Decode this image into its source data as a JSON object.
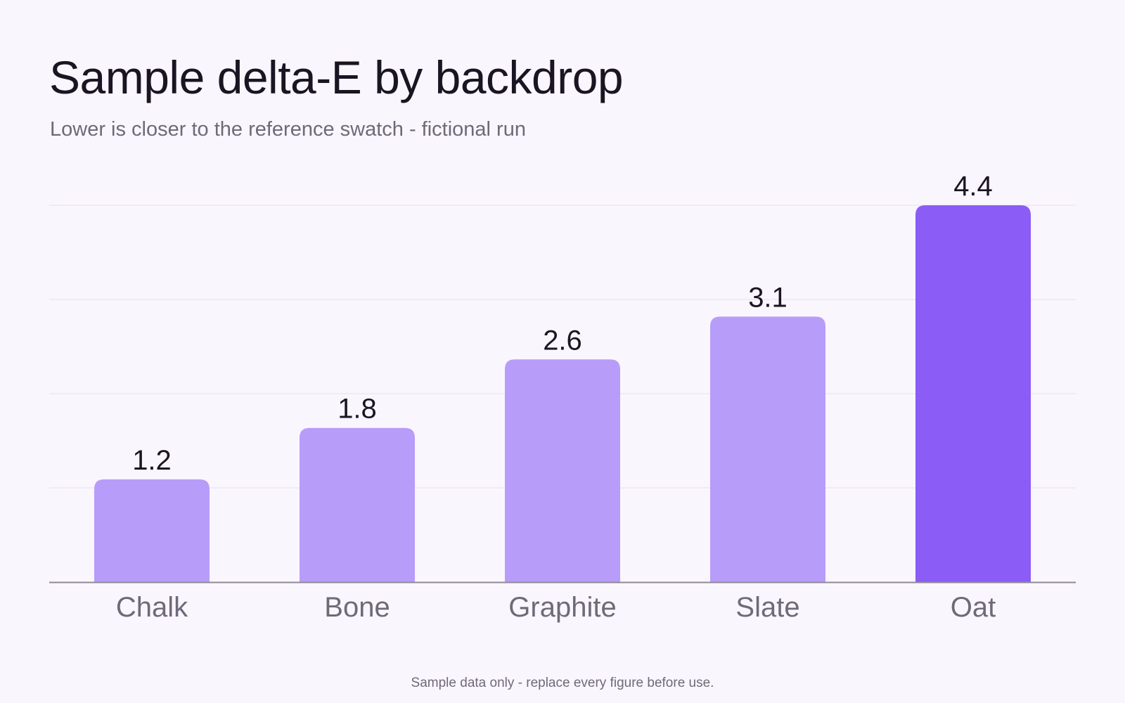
{
  "chart_data": {
    "type": "bar",
    "title": "Sample delta-E by backdrop",
    "subtitle": "Lower is closer to the reference swatch - fictional run",
    "categories": [
      "Chalk",
      "Bone",
      "Graphite",
      "Slate",
      "Oat"
    ],
    "values": [
      1.2,
      1.8,
      2.6,
      3.1,
      4.4
    ],
    "value_labels": [
      "1.2",
      "1.8",
      "2.6",
      "3.1",
      "4.4"
    ],
    "ylim": [
      0,
      4.4
    ],
    "xlabel": "",
    "ylabel": "",
    "grid": true,
    "highlight_index": 4,
    "colors": {
      "bar": "#b89cf9",
      "highlight": "#8b5cf6",
      "grid": "#e6e0ec",
      "axis": "#8f8b96",
      "value_text": "#1a1523",
      "category_text": "#6e6a78"
    }
  },
  "footnote": "Sample data only - replace every figure before use."
}
